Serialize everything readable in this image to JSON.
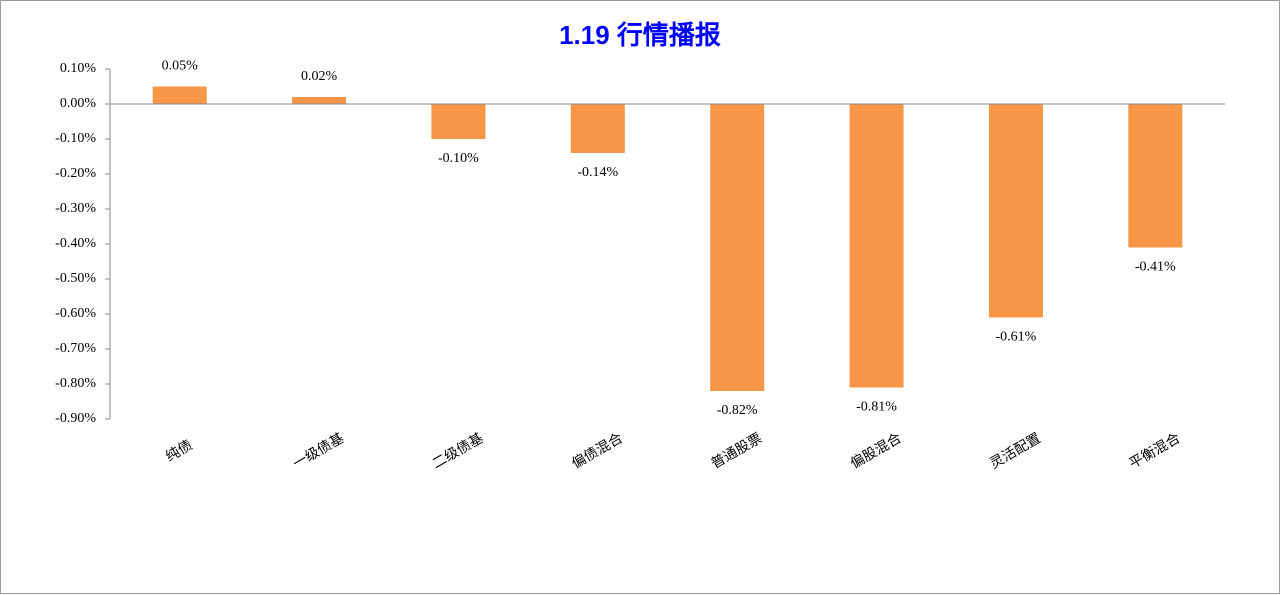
{
  "chart_data": {
    "type": "bar",
    "title": "1.19 行情播报",
    "categories": [
      "纯债",
      "一级债基",
      "二级债基",
      "偏债混合",
      "普通股票",
      "偏股混合",
      "灵活配置",
      "平衡混合"
    ],
    "values": [
      0.05,
      0.02,
      -0.1,
      -0.14,
      -0.82,
      -0.81,
      -0.61,
      -0.41
    ],
    "value_labels": [
      "0.05%",
      "0.02%",
      "-0.10%",
      "-0.14%",
      "-0.82%",
      "-0.81%",
      "-0.61%",
      "-0.41%"
    ],
    "color": "#f79646",
    "ylim": [
      -0.9,
      0.1
    ],
    "yticks": [
      {
        "value": 0.1,
        "label": "0.10%"
      },
      {
        "value": 0,
        "label": "0.00%"
      },
      {
        "value": -0.1,
        "label": "-0.10%"
      },
      {
        "value": -0.2,
        "label": "-0.20%"
      },
      {
        "value": -0.3,
        "label": "-0.30%"
      },
      {
        "value": -0.4,
        "label": "-0.40%"
      },
      {
        "value": -0.5,
        "label": "-0.50%"
      },
      {
        "value": -0.6,
        "label": "-0.60%"
      },
      {
        "value": -0.7,
        "label": "-0.70%"
      },
      {
        "value": -0.8,
        "label": "-0.80%"
      },
      {
        "value": -0.9,
        "label": "-0.90%"
      }
    ],
    "grid": false
  }
}
